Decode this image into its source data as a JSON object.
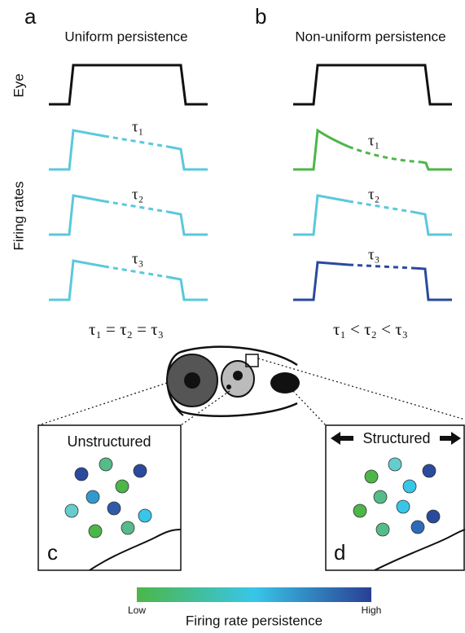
{
  "panel_a": {
    "label": "a",
    "title": "Uniform persistence",
    "equation": "τ₁ = τ₂ = τ₃"
  },
  "panel_b": {
    "label": "b",
    "title": "Non-uniform persistence",
    "equation": "τ₁ < τ₂ < τ₃"
  },
  "row_labels": {
    "eye": "Eye",
    "firing": "Firing rates"
  },
  "tau_labels": [
    "τ₁",
    "τ₂",
    "τ₃"
  ],
  "panel_c": {
    "label": "c",
    "title": "Unstructured"
  },
  "panel_d": {
    "label": "d",
    "title": "Structured"
  },
  "colorbar": {
    "low": "Low",
    "high": "High",
    "title": "Firing rate persistence"
  }
}
